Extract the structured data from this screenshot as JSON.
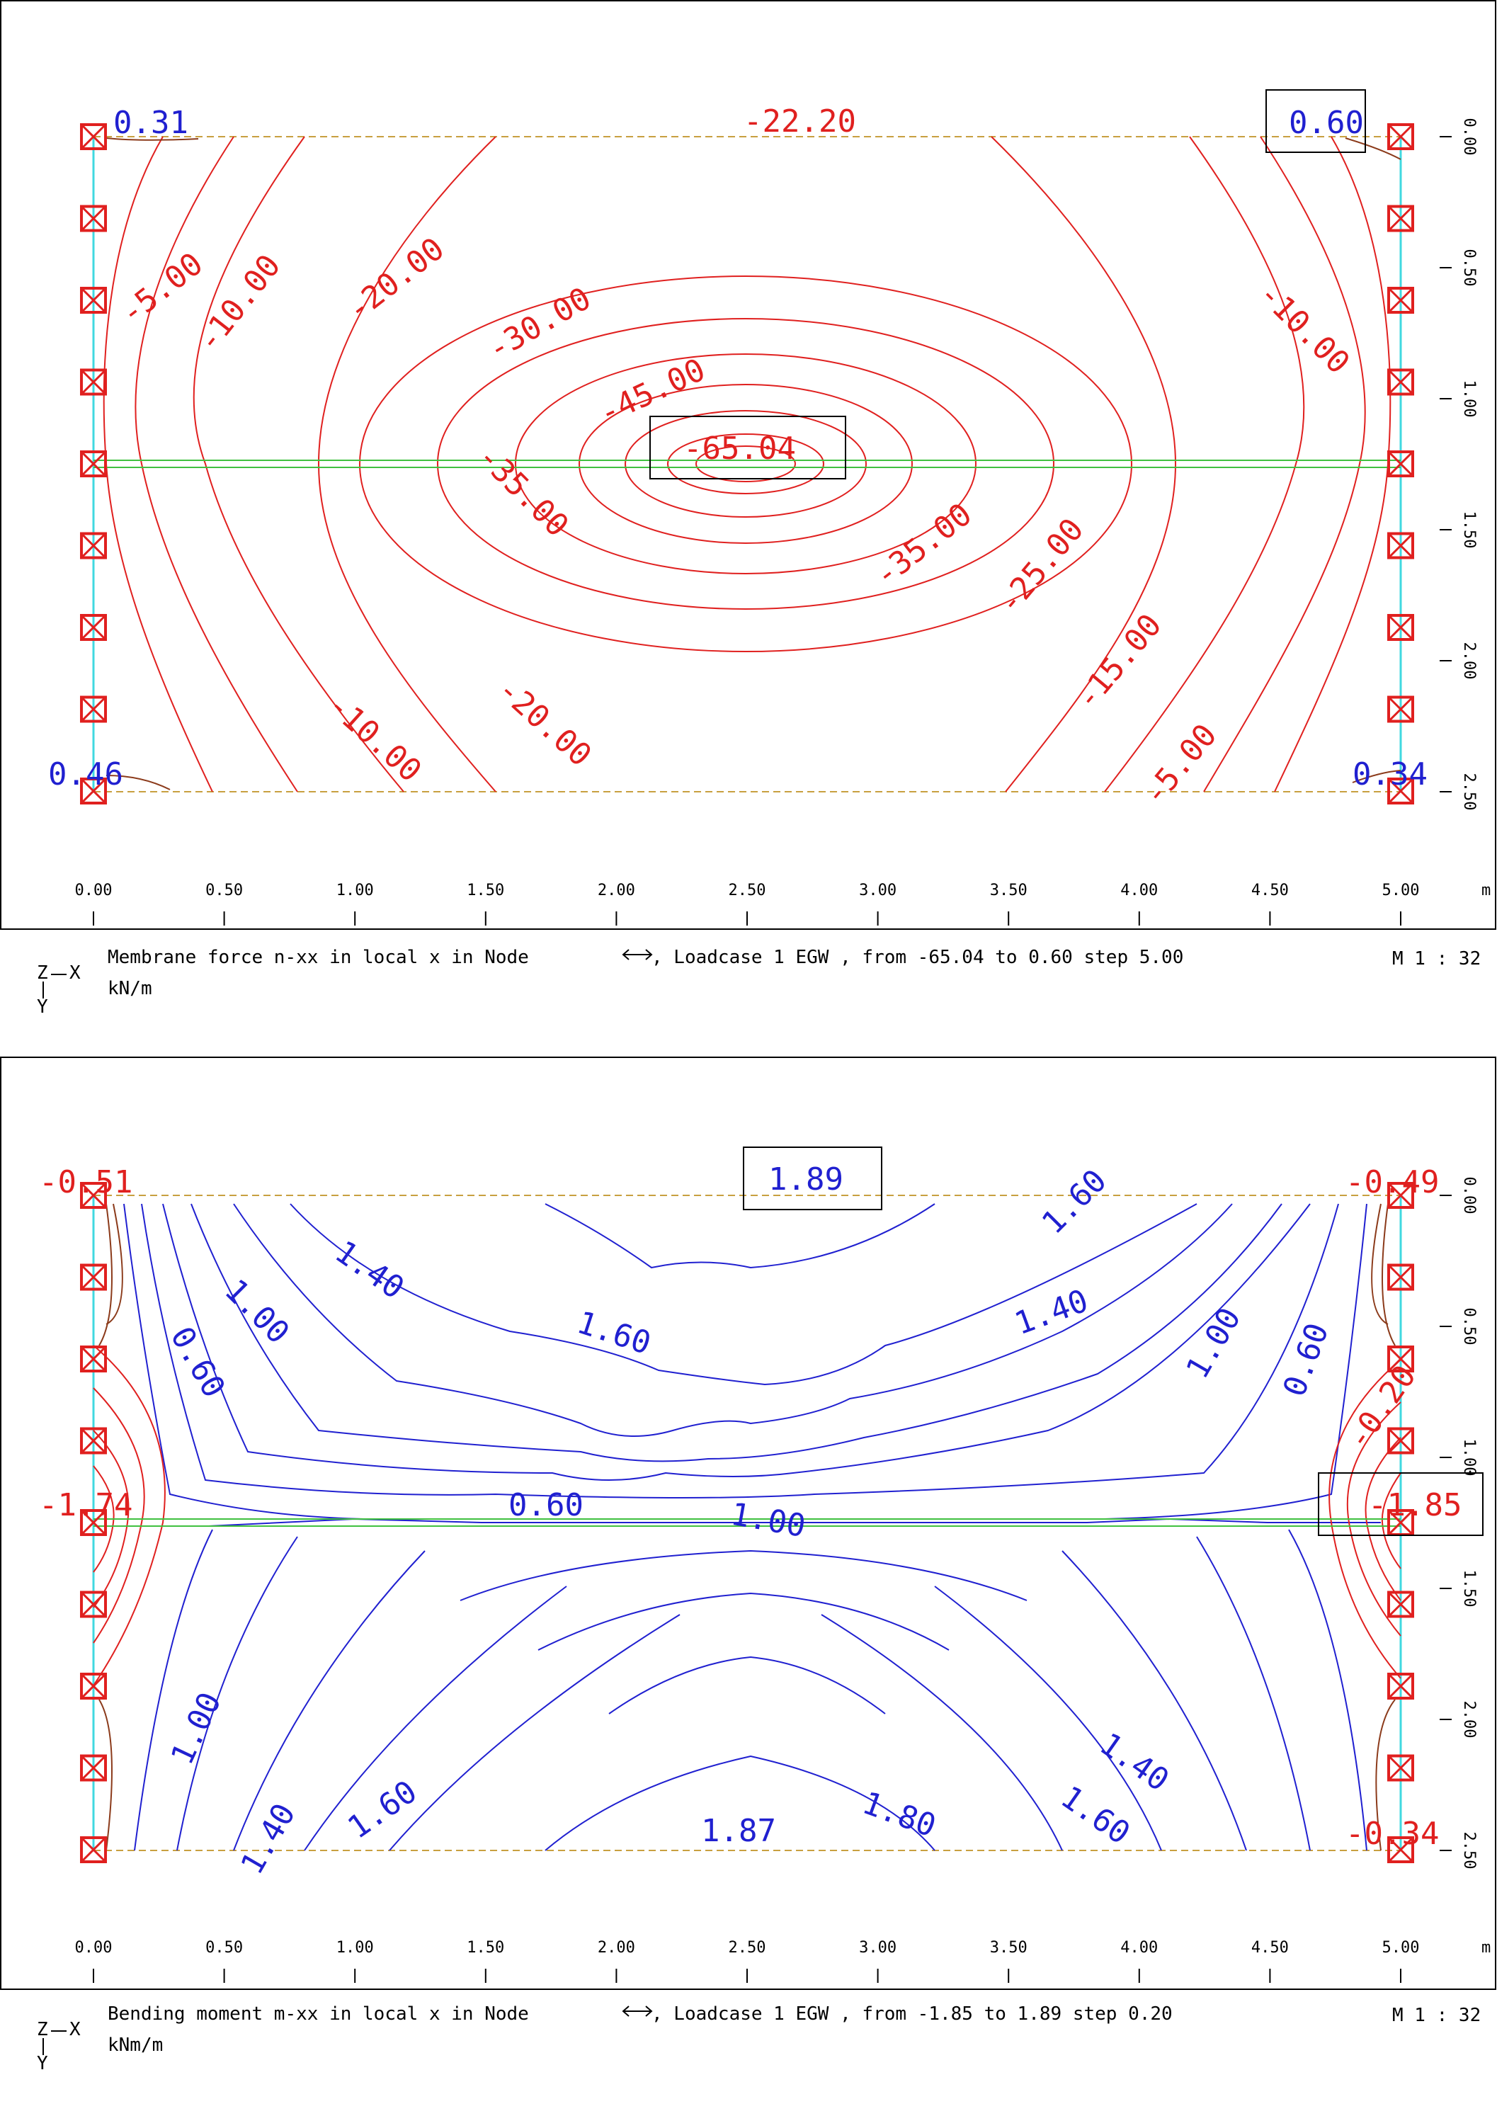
{
  "x_ticks": [
    "0.00",
    "0.50",
    "1.00",
    "1.50",
    "2.00",
    "2.50",
    "3.00",
    "3.50",
    "4.00",
    "4.50",
    "5.00"
  ],
  "x_unit": "m",
  "y_ticks": [
    "0.00",
    "0.50",
    "1.00",
    "1.50",
    "2.00",
    "2.50"
  ],
  "colors": {
    "negative": "#e0201f",
    "positive": "#2020d0",
    "support": "#e0201f",
    "edge_dashed": "#c8a040",
    "axis_line": "#40d8e0",
    "beam": "#40c040",
    "frame": "#000000"
  },
  "icons": {
    "support": "boxed-x-support-icon",
    "axis": "z-x-y-axis-icon",
    "arrow": "double-arrow-icon"
  },
  "panel1": {
    "caption_title": "Membrane force n-xx in local x in Node",
    "caption_loadcase": ", Loadcase 1  EGW    , from -65.04 to 0.60 step 5.00",
    "caption_unit": "kN/m",
    "scale": "M 1 : 32",
    "axis_x": "X",
    "axis_y": "Y",
    "axis_z": "Z",
    "extremes": {
      "top_left": "0.31",
      "top_right": "0.60",
      "top_mid": "-22.20",
      "bottom_left": "0.46",
      "bottom_right": "0.34",
      "min": "-65.04"
    },
    "contour_labels": {
      "l1": "-5.00",
      "l2": "-10.00",
      "l3": "-20.00",
      "l4": "-30.00",
      "l5": "-45.00",
      "l6": "-35.00",
      "l7": "-10.00",
      "l8": "-20.00",
      "l9": "-10.00",
      "l10": "-35.00",
      "l11": "-25.00",
      "l12": "-15.00",
      "l13": "-5.00"
    }
  },
  "panel2": {
    "caption_title": "Bending moment m-xx in local x in Node",
    "caption_loadcase": ", Loadcase 1  EGW    , from -1.85 to 1.89 step 0.20",
    "caption_unit": "kNm/m",
    "scale": "M 1 : 32",
    "axis_x": "X",
    "axis_y": "Y",
    "axis_z": "Z",
    "extremes": {
      "top_left": "-0.51",
      "top_right": "-0.49",
      "top_mid": "1.89",
      "mid_left": "-1.74",
      "mid_right": "-1.85",
      "bottom_right": "-0.34",
      "bottom_mid": "1.87",
      "right_upper": "-0.20"
    },
    "contour_labels": {
      "m1": "1.40",
      "m2": "1.00",
      "m3": "0.60",
      "m4": "1.60",
      "m5": "1.60",
      "m6": "1.40",
      "m7": "1.00",
      "m8": "0.60",
      "m9": "0.60",
      "m10": "1.00",
      "m11": "1.00",
      "m12": "1.40",
      "m13": "1.60",
      "m14": "1.80",
      "m15": "1.40",
      "m16": "1.60"
    }
  }
}
